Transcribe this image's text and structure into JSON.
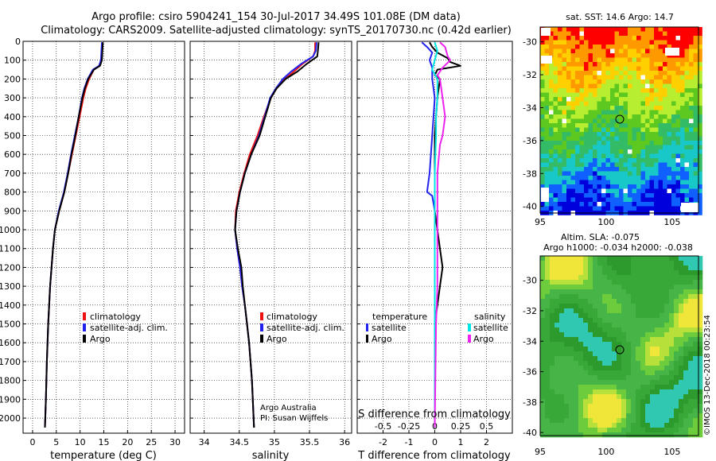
{
  "header": {
    "title_line1": "Argo profile: csiro 5904241_154 30-Jul-2017 34.49S 101.08E (DM data)",
    "title_line2": "Climatology: CARS2009. Satellite-adjusted climatology: synTS_20170730.nc (0.42d earlier)"
  },
  "colors": {
    "climatology": "#ee1111",
    "satellite_adj": "#2222ee",
    "argo": "#000000",
    "satellite": "#00e5e5",
    "salinity_argo": "#ee22ee"
  },
  "depth_axis": {
    "ticks": [
      "0",
      "100",
      "200",
      "300",
      "400",
      "500",
      "600",
      "700",
      "800",
      "900",
      "1000",
      "1100",
      "1200",
      "1300",
      "1400",
      "1500",
      "1600",
      "1700",
      "1800",
      "1900",
      "2000"
    ]
  },
  "chart_data": [
    {
      "type": "line",
      "panel": "temperature",
      "xlabel": "temperature (deg C)",
      "xlim": [
        -2,
        32
      ],
      "ylim": [
        2080,
        0
      ],
      "xticks": [
        "0",
        "5",
        "10",
        "15",
        "20",
        "25",
        "30"
      ],
      "xtick_values": [
        0,
        5,
        10,
        15,
        20,
        25,
        30
      ],
      "legend": [
        "climatology",
        "satellite-adj. clim.",
        "Argo"
      ],
      "series": [
        {
          "name": "climatology",
          "color_key": "climatology",
          "depth": [
            5,
            50,
            100,
            130,
            150,
            200,
            250,
            300,
            400,
            500,
            600,
            700,
            800,
            900,
            1000,
            1100,
            1200,
            1300,
            1500,
            1700,
            1900,
            2050
          ],
          "values": [
            14.7,
            14.6,
            14.5,
            14.0,
            12.9,
            11.9,
            11.2,
            10.7,
            9.9,
            9.1,
            8.3,
            7.5,
            6.7,
            5.6,
            4.7,
            4.3,
            4.0,
            3.7,
            3.3,
            3.0,
            2.8,
            2.6
          ]
        },
        {
          "name": "satellite-adj. clim.",
          "color_key": "satellite_adj",
          "depth": [
            5,
            50,
            100,
            130,
            150,
            200,
            250,
            300,
            400,
            500,
            600,
            700,
            800,
            900,
            1000,
            1100,
            1200,
            1300,
            1500,
            1700,
            1900,
            2050
          ],
          "values": [
            14.6,
            14.5,
            14.4,
            14.0,
            12.7,
            11.6,
            10.9,
            10.4,
            9.7,
            8.9,
            8.1,
            7.4,
            6.6,
            5.5,
            4.7,
            4.3,
            4.0,
            3.7,
            3.3,
            3.0,
            2.8,
            2.6
          ]
        },
        {
          "name": "Argo",
          "color_key": "argo",
          "depth": [
            5,
            50,
            100,
            130,
            150,
            200,
            250,
            300,
            400,
            500,
            600,
            700,
            800,
            900,
            1000,
            1100,
            1200,
            1300,
            1500,
            1700,
            1900,
            2050
          ],
          "values": [
            14.8,
            14.7,
            14.6,
            14.2,
            12.9,
            11.7,
            11.0,
            10.5,
            9.7,
            9.0,
            8.2,
            7.5,
            6.7,
            5.6,
            4.7,
            4.3,
            4.0,
            3.7,
            3.3,
            3.0,
            2.8,
            2.6
          ]
        }
      ]
    },
    {
      "type": "line",
      "panel": "salinity",
      "xlabel": "salinity",
      "xlim": [
        33.8,
        36.1
      ],
      "ylim": [
        2080,
        0
      ],
      "xticks": [
        "34",
        "34.5",
        "35",
        "35.5",
        "36"
      ],
      "xtick_values": [
        34,
        34.5,
        35,
        35.5,
        36
      ],
      "legend": [
        "climatology",
        "satellite-adj. clim.",
        "Argo"
      ],
      "annotation": [
        "Argo Australia",
        "PI: Susan Wijffels"
      ],
      "series": [
        {
          "name": "climatology",
          "color_key": "climatology",
          "depth": [
            5,
            50,
            80,
            120,
            160,
            200,
            250,
            300,
            400,
            500,
            600,
            700,
            800,
            900,
            1000,
            1100,
            1200,
            1300,
            1400,
            1500,
            1600,
            1800,
            2050
          ],
          "values": [
            35.58,
            35.58,
            35.55,
            35.4,
            35.28,
            35.15,
            35.03,
            34.95,
            34.85,
            34.76,
            34.65,
            34.57,
            34.5,
            34.45,
            34.44,
            34.47,
            34.51,
            34.54,
            34.58,
            34.61,
            34.64,
            34.68,
            34.71
          ]
        },
        {
          "name": "satellite-adj. clim.",
          "color_key": "satellite_adj",
          "depth": [
            5,
            50,
            80,
            120,
            160,
            200,
            250,
            300,
            400,
            500,
            600,
            700,
            800,
            900,
            1000,
            1100,
            1200,
            1300,
            1400,
            1500,
            1600,
            1800,
            2050
          ],
          "values": [
            35.6,
            35.59,
            35.55,
            35.38,
            35.24,
            35.12,
            35.02,
            34.94,
            34.86,
            34.78,
            34.67,
            34.58,
            34.51,
            34.46,
            34.44,
            34.47,
            34.51,
            34.54,
            34.58,
            34.61,
            34.64,
            34.68,
            34.71
          ]
        },
        {
          "name": "Argo",
          "color_key": "argo",
          "depth": [
            5,
            50,
            80,
            120,
            160,
            200,
            250,
            300,
            400,
            500,
            600,
            700,
            800,
            900,
            1000,
            1100,
            1200,
            1300,
            1400,
            1500,
            1600,
            1800,
            2050
          ],
          "values": [
            35.63,
            35.62,
            35.61,
            35.46,
            35.33,
            35.16,
            35.03,
            34.95,
            34.87,
            34.79,
            34.67,
            34.58,
            34.51,
            34.46,
            34.44,
            34.48,
            34.53,
            34.55,
            34.58,
            34.61,
            34.64,
            34.68,
            34.71
          ]
        }
      ]
    },
    {
      "type": "line",
      "panel": "difference",
      "xlabel": "T difference from climatology",
      "xlabel_top": "S difference from climatology",
      "xlim": [
        -3,
        3
      ],
      "ylim": [
        2080,
        0
      ],
      "xticks": [
        "-2",
        "-1",
        "0",
        "1",
        "2"
      ],
      "xtick_values": [
        -2,
        -1,
        0,
        1,
        2
      ],
      "s_ticks": [
        "-0.5",
        "-0.25",
        "0",
        "0.25",
        "0.5"
      ],
      "s_tick_positions": [
        -2,
        -1,
        0,
        1,
        2
      ],
      "legend_left_title": "temperature",
      "legend_right_title": "salinity",
      "legend_left": [
        "satellite",
        "Argo"
      ],
      "legend_right": [
        "satellite",
        "Argo"
      ],
      "series": [
        {
          "name": "temperature satellite",
          "color_key": "satellite_adj",
          "depth": [
            5,
            30,
            60,
            100,
            140,
            200,
            300,
            500,
            700,
            800,
            820,
            900,
            1000,
            1200,
            1500,
            2050
          ],
          "values": [
            -0.5,
            -0.3,
            -0.1,
            -0.2,
            -0.1,
            -0.1,
            0,
            -0.1,
            -0.2,
            -0.3,
            -0.1,
            0,
            0,
            0,
            0,
            0
          ]
        },
        {
          "name": "temperature Argo",
          "color_key": "argo",
          "depth": [
            5,
            30,
            60,
            90,
            110,
            130,
            150,
            180,
            200,
            300,
            500,
            700,
            900,
            1100,
            1200,
            1300,
            1400,
            1500,
            2050
          ],
          "values": [
            -0.2,
            -0.1,
            0.1,
            0.5,
            0.6,
            1.0,
            0.1,
            0,
            0.2,
            0.1,
            0,
            0,
            0,
            0.2,
            0.3,
            0.2,
            0.1,
            0,
            0
          ]
        },
        {
          "name": "salinity satellite",
          "color_key": "satellite",
          "depth": [
            5,
            50,
            100,
            150,
            200,
            300,
            400,
            500,
            700,
            900,
            1100,
            1300,
            1500,
            1800,
            2050
          ],
          "values": [
            0.0,
            0.1,
            0.0,
            -0.1,
            0.1,
            0.1,
            0.05,
            0.05,
            0.0,
            0.0,
            0.0,
            0.0,
            0.0,
            0.0,
            0.0
          ]
        },
        {
          "name": "salinity Argo",
          "color_key": "salinity_argo",
          "depth": [
            5,
            30,
            80,
            100,
            140,
            180,
            200,
            300,
            400,
            500,
            550,
            700,
            1000,
            1300,
            1500,
            2050
          ],
          "values": [
            0.2,
            0.4,
            0.5,
            0.6,
            0.3,
            0.1,
            0.2,
            0.3,
            0.4,
            0.3,
            0.2,
            0.1,
            0.1,
            0.1,
            0.05,
            0
          ]
        }
      ]
    }
  ],
  "maps": {
    "sst_title": "sat. SST: 14.6 Argo: 14.7",
    "sla_title_line1": "Altim. SLA: -0.075",
    "sla_title_line2": "Argo h1000: -0.034 h2000: -0.038",
    "lat_ticks": [
      "-30",
      "-32",
      "-34",
      "-36",
      "-38",
      "-40"
    ],
    "lon_ticks": [
      "95",
      "100",
      "105"
    ],
    "sst_colors": [
      "#ff0000",
      "#ff9900",
      "#ffd000",
      "#b8ee30",
      "#5cc820",
      "#33bb66",
      "#18c8c8",
      "#1060ff",
      "#0000dd"
    ],
    "sla_colors": [
      "#2c9a2c",
      "#38a838",
      "#46b446",
      "#6ccc3c",
      "#b8e03a",
      "#f0e63a",
      "#e8c830",
      "#30c8b0"
    ],
    "float_marker": "black circle at float position",
    "credit": "©IMOS 13-Dec-2018 00:23:54"
  }
}
